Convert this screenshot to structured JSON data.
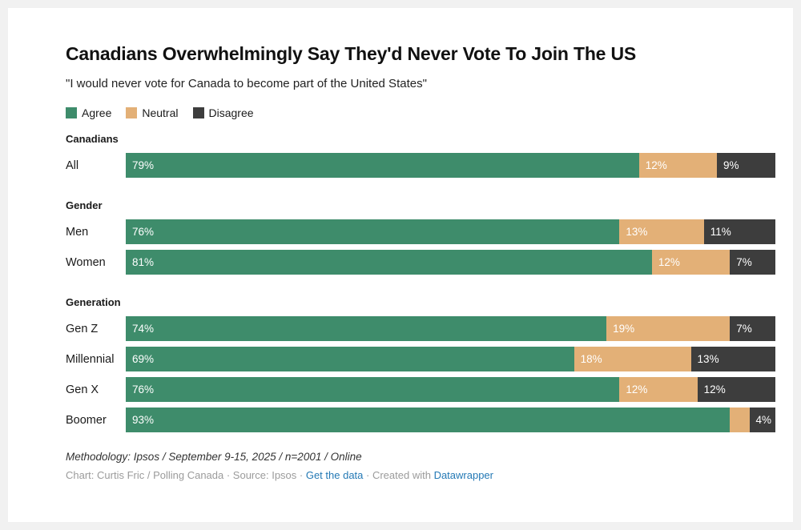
{
  "header": {
    "title": "Canadians Overwhelmingly Say They'd Never Vote To Join The US",
    "subtitle": "\"I would never vote for Canada to become part of the United States\""
  },
  "colors": {
    "agree": "#3e8c6b",
    "neutral": "#e3b077",
    "disagree": "#3d3d3d",
    "link": "#2479b5",
    "background": "#ffffff",
    "page_background": "#f1f1f1"
  },
  "chart_data": {
    "type": "bar",
    "stacked": true,
    "orientation": "horizontal",
    "unit": "%",
    "x_range": [
      0,
      100
    ],
    "grid": false,
    "legend_position": "top-left",
    "series": [
      {
        "name": "Agree",
        "color": "#3e8c6b"
      },
      {
        "name": "Neutral",
        "color": "#e3b077"
      },
      {
        "name": "Disagree",
        "color": "#3d3d3d"
      }
    ],
    "groups": [
      {
        "group": "Canadians",
        "rows": [
          {
            "label": "All",
            "values": [
              79,
              12,
              9
            ],
            "labels": [
              "79%",
              "12%",
              "9%"
            ]
          }
        ]
      },
      {
        "group": "Gender",
        "rows": [
          {
            "label": "Men",
            "values": [
              76,
              13,
              11
            ],
            "labels": [
              "76%",
              "13%",
              "11%"
            ]
          },
          {
            "label": "Women",
            "values": [
              81,
              12,
              7
            ],
            "labels": [
              "81%",
              "12%",
              "7%"
            ]
          }
        ]
      },
      {
        "group": "Generation",
        "rows": [
          {
            "label": "Gen Z",
            "values": [
              74,
              19,
              7
            ],
            "labels": [
              "74%",
              "19%",
              "7%"
            ]
          },
          {
            "label": "Millennial",
            "values": [
              69,
              18,
              13
            ],
            "labels": [
              "69%",
              "18%",
              "13%"
            ]
          },
          {
            "label": "Gen X",
            "values": [
              76,
              12,
              12
            ],
            "labels": [
              "76%",
              "12%",
              "12%"
            ]
          },
          {
            "label": "Boomer",
            "values": [
              93,
              3,
              4
            ],
            "labels": [
              "93%",
              "",
              "4%"
            ]
          }
        ]
      }
    ]
  },
  "footer": {
    "methodology": "Methodology: Ipsos / September 9-15, 2025 / n=2001 / Online",
    "credit_prefix": "Chart: Curtis Fric / Polling Canada · Source: Ipsos · ",
    "get_data_link": "Get the data",
    "created_with": " · Created with ",
    "datawrapper_link": "Datawrapper"
  }
}
